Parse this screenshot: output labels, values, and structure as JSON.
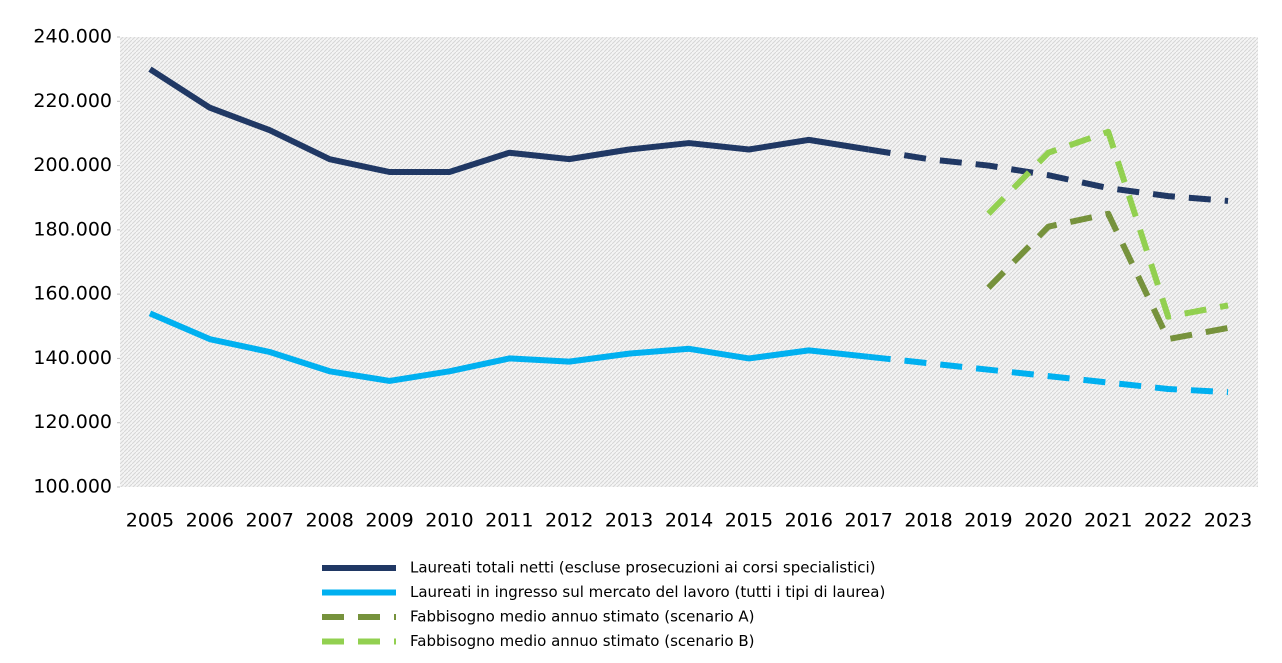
{
  "chart_data": {
    "type": "line",
    "categories": [
      "2005",
      "2006",
      "2007",
      "2008",
      "2009",
      "2010",
      "2011",
      "2012",
      "2013",
      "2014",
      "2015",
      "2016",
      "2017",
      "2018",
      "2019",
      "2020",
      "2021",
      "2022",
      "2023"
    ],
    "projection_start": "2017",
    "series": [
      {
        "name": "Laureati totali netti (escluse prosecuzioni ai corsi specialistici)",
        "color": "#203864",
        "dashed": false,
        "values": [
          230000,
          218000,
          211000,
          202000,
          198000,
          198000,
          204000,
          202000,
          205000,
          207000,
          205000,
          208000,
          205000,
          202000,
          200000,
          197000,
          193000,
          190500,
          189000
        ]
      },
      {
        "name": "Laureati in ingresso sul mercato del lavoro (tutti i tipi di laurea)",
        "color": "#00b0f0",
        "dashed": false,
        "values": [
          154000,
          146000,
          142000,
          136000,
          133000,
          136000,
          140000,
          139000,
          141500,
          143000,
          140000,
          142500,
          140500,
          138500,
          136500,
          134500,
          132500,
          130500,
          129500
        ]
      },
      {
        "name": "Fabbisogno medio annuo stimato (scenario A)",
        "color": "#76923c",
        "dashed": true,
        "values": [
          null,
          null,
          null,
          null,
          null,
          null,
          null,
          null,
          null,
          null,
          null,
          null,
          null,
          null,
          162000,
          181000,
          185000,
          146000,
          149500
        ]
      },
      {
        "name": "Fabbisogno medio annuo stimato (scenario B)",
        "color": "#92d050",
        "dashed": true,
        "values": [
          null,
          null,
          null,
          null,
          null,
          null,
          null,
          null,
          null,
          null,
          null,
          null,
          null,
          null,
          185000,
          204000,
          210500,
          153000,
          156500
        ]
      }
    ],
    "ylim": [
      100000,
      240000
    ],
    "yticks": [
      {
        "value": 100000,
        "label": "100.000"
      },
      {
        "value": 120000,
        "label": "120.000"
      },
      {
        "value": 140000,
        "label": "140.000"
      },
      {
        "value": 160000,
        "label": "160.000"
      },
      {
        "value": 180000,
        "label": "180.000"
      },
      {
        "value": 200000,
        "label": "200.000"
      },
      {
        "value": 220000,
        "label": "220.000"
      },
      {
        "value": 240000,
        "label": "240.000"
      }
    ]
  }
}
